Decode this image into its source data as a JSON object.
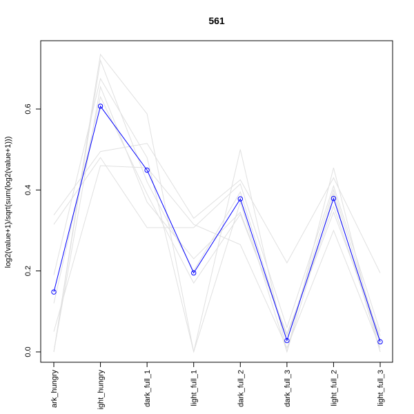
{
  "chart_data": {
    "type": "line",
    "title": "561",
    "xlabel": "",
    "ylabel": "log2(value+1)/sqrt(sum(log2(value+1)))",
    "categories": [
      "dark_hungry",
      "light_hungry",
      "dark_full_1",
      "light_full_1",
      "dark_full_2",
      "dark_full_3",
      "light_full_2",
      "light_full_3"
    ],
    "category_labels_visible": [
      "ark_hungry",
      "ight_hungry",
      "dark_full_1",
      "light_full_1",
      "dark_full_2",
      "dark_full_3",
      "light_full_2",
      "light_full_3"
    ],
    "ylim": [
      0,
      0.75
    ],
    "yticks": [
      0.0,
      0.2,
      0.4,
      0.6
    ],
    "ytick_labels": [
      "0.0",
      "0.2",
      "0.4",
      "0.6"
    ],
    "highlight_color": "#0000ff",
    "background_color": "#e0e0e0",
    "highlight": {
      "values": [
        0.148,
        0.607,
        0.449,
        0.195,
        0.378,
        0.028,
        0.379,
        0.025
      ]
    },
    "background_series": [
      {
        "values": [
          0.0,
          0.735,
          0.588,
          0.0,
          0.5,
          0.0,
          0.455,
          0.0
        ]
      },
      {
        "values": [
          0.338,
          0.495,
          0.515,
          0.33,
          0.425,
          0.22,
          0.43,
          0.195
        ]
      },
      {
        "values": [
          0.315,
          0.48,
          0.307,
          0.307,
          0.415,
          0.06,
          0.41,
          0.05
        ]
      },
      {
        "values": [
          0.19,
          0.675,
          0.48,
          0.0,
          0.37,
          0.0,
          0.39,
          0.0
        ]
      },
      {
        "values": [
          0.0,
          0.655,
          0.37,
          0.23,
          0.345,
          0.04,
          0.36,
          0.02
        ]
      },
      {
        "values": [
          0.05,
          0.46,
          0.455,
          0.315,
          0.265,
          0.01,
          0.3,
          0.01
        ]
      },
      {
        "values": [
          0.0,
          0.72,
          0.42,
          0.2,
          0.395,
          0.03,
          0.4,
          0.03
        ]
      },
      {
        "values": [
          0.12,
          0.63,
          0.39,
          0.17,
          0.34,
          0.045,
          0.345,
          0.04
        ]
      }
    ]
  }
}
